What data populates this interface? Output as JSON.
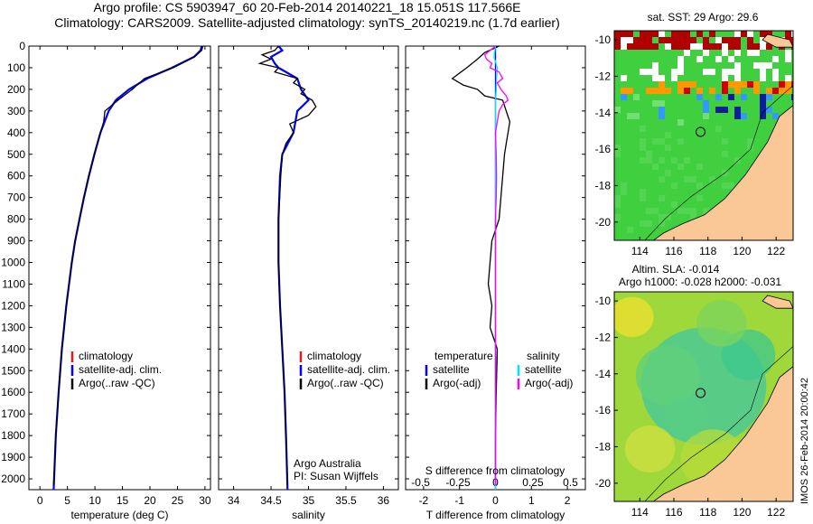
{
  "header": {
    "line1": "Argo profile: CS 5903947_60 20-Feb-2014 20140221_18 15.051S 117.566E",
    "line2": "Climatology: CARS2009. Satellite-adjusted climatology: synTS_20140219.nc (1.7d earlier)"
  },
  "annotations": {
    "credit_line1": "Argo Australia",
    "credit_line2": "PI: Susan Wijffels",
    "s_diff_label": "S difference from climatology",
    "map_top_title": "sat. SST: 29 Argo: 29.6",
    "map_bottom_title1": "Altim. SLA: -0.014",
    "map_bottom_title2": "Argo h1000: -0.028 h2000: -0.031",
    "side_stamp": "IMOS 26-Feb-2014 20:00:42"
  },
  "colors": {
    "climatology": "#e41a1c",
    "satellite": "#0000ff",
    "argo": "#000000",
    "salinity_satellite": "#00e5ff",
    "salinity_argo": "#ff00ff",
    "land": "#f9c896",
    "ocean_green": "#3fcf3f"
  },
  "chart_data": [
    {
      "type": "line",
      "name": "temperature-panel",
      "xlabel": "temperature (deg C)",
      "ylabel": "",
      "xlim": [
        -2,
        31
      ],
      "ylim": [
        2050,
        0
      ],
      "xticks": [
        0,
        5,
        10,
        15,
        20,
        25,
        30
      ],
      "yticks": [
        0,
        100,
        200,
        300,
        400,
        500,
        600,
        700,
        800,
        900,
        1000,
        1100,
        1200,
        1300,
        1400,
        1500,
        1600,
        1700,
        1800,
        1900,
        2000
      ],
      "legend": [
        "climatology",
        "satellite-adj. clim.",
        "Argo(..raw -QC)"
      ],
      "legend_placement": "lower-middle",
      "series": [
        {
          "name": "climatology",
          "depth": [
            0,
            20,
            50,
            100,
            150,
            200,
            250,
            300,
            400,
            500,
            600,
            700,
            800,
            900,
            1000,
            1200,
            1400,
            1600,
            1800,
            2050
          ],
          "values": [
            29.4,
            29.2,
            28.0,
            24.0,
            19.5,
            16.2,
            13.8,
            12.5,
            11.0,
            9.9,
            8.9,
            8.0,
            7.2,
            6.4,
            5.8,
            4.8,
            4.0,
            3.4,
            2.9,
            2.5
          ]
        },
        {
          "name": "satellite-adj. clim.",
          "depth": [
            0,
            20,
            50,
            100,
            150,
            200,
            250,
            300,
            400,
            500,
            600,
            700,
            800,
            900,
            1000,
            1200,
            1400,
            1600,
            1800,
            2050
          ],
          "values": [
            29.4,
            29.2,
            28.0,
            24.0,
            19.5,
            16.2,
            13.8,
            12.5,
            11.0,
            9.9,
            8.9,
            8.0,
            7.2,
            6.4,
            5.8,
            4.8,
            4.0,
            3.4,
            2.9,
            2.5
          ]
        },
        {
          "name": "Argo(..raw -QC)",
          "depth": [
            0,
            20,
            50,
            100,
            150,
            200,
            250,
            300,
            350,
            400,
            500,
            600,
            700,
            800,
            900,
            1000,
            1200,
            1400,
            1600,
            1800,
            2030
          ],
          "values": [
            29.6,
            29.4,
            28.1,
            24.2,
            19.0,
            16.8,
            14.2,
            11.8,
            11.6,
            11.0,
            9.9,
            8.9,
            8.0,
            7.2,
            6.4,
            5.8,
            4.8,
            4.0,
            3.4,
            2.9,
            2.5
          ]
        }
      ]
    },
    {
      "type": "line",
      "name": "salinity-panel",
      "xlabel": "salinity",
      "xlim": [
        33.8,
        36.2
      ],
      "ylim": [
        2050,
        0
      ],
      "xticks": [
        34,
        34.5,
        35,
        35.5,
        36
      ],
      "legend": [
        "climatology",
        "satellite-adj. clim.",
        "Argo(..raw -QC)"
      ],
      "legend_placement": "lower-middle",
      "series": [
        {
          "name": "climatology",
          "depth": [
            0,
            20,
            50,
            80,
            100,
            150,
            200,
            250,
            300,
            400,
            500,
            600,
            800,
            1000,
            1200,
            1400,
            1600,
            1800,
            2050
          ],
          "values": [
            34.6,
            34.65,
            34.5,
            34.55,
            34.6,
            34.85,
            34.9,
            35.0,
            34.85,
            34.8,
            34.65,
            34.62,
            34.6,
            34.6,
            34.62,
            34.65,
            34.68,
            34.7,
            34.72
          ]
        },
        {
          "name": "satellite-adj. clim.",
          "depth": [
            0,
            20,
            50,
            80,
            100,
            150,
            200,
            250,
            300,
            400,
            500,
            600,
            800,
            1000,
            1200,
            1400,
            1600,
            1800,
            2050
          ],
          "values": [
            34.6,
            34.65,
            34.5,
            34.55,
            34.6,
            34.85,
            34.9,
            35.0,
            34.85,
            34.8,
            34.65,
            34.62,
            34.6,
            34.6,
            34.62,
            34.65,
            34.68,
            34.7,
            34.72
          ]
        },
        {
          "name": "Argo(..raw -QC)",
          "depth": [
            0,
            20,
            40,
            60,
            80,
            100,
            120,
            150,
            170,
            200,
            220,
            250,
            280,
            320,
            360,
            400,
            450,
            500,
            600,
            800,
            1000,
            1200,
            1400,
            1600,
            1800,
            2030
          ],
          "values": [
            34.6,
            34.55,
            34.38,
            34.5,
            34.35,
            34.6,
            34.55,
            34.85,
            34.8,
            34.95,
            34.9,
            35.05,
            35.1,
            35.0,
            34.75,
            34.8,
            34.7,
            34.65,
            34.63,
            34.6,
            34.6,
            34.62,
            34.65,
            34.68,
            34.7,
            34.72
          ]
        }
      ]
    },
    {
      "type": "line",
      "name": "difference-panel",
      "xlabel": "T difference from climatology",
      "xlabel_top": "S difference from climatology",
      "xlim": [
        -2.5,
        2.5
      ],
      "ylim": [
        2050,
        0
      ],
      "xticks": [
        -2,
        -1,
        0,
        1,
        2
      ],
      "x2ticks": [
        -0.5,
        -0.25,
        0,
        0.25,
        0.5
      ],
      "legend": [
        "temperature",
        "satellite",
        "Argo(-adj)",
        "salinity",
        "satellite",
        "Argo(-adj)"
      ],
      "legend_placement": "lower-middle",
      "series": [
        {
          "name": "satellite",
          "depth": [
            0,
            100,
            200,
            300,
            500,
            800,
            1200,
            1600,
            2050
          ],
          "values": [
            0,
            0,
            0,
            0,
            0,
            0,
            0,
            0,
            0
          ]
        },
        {
          "name": "Argo(-adj)",
          "depth": [
            0,
            30,
            60,
            100,
            150,
            180,
            200,
            230,
            250,
            300,
            350,
            400,
            450,
            500,
            600,
            700,
            800,
            900,
            1000,
            1100,
            1200,
            1300,
            1400,
            1600,
            1800,
            2030
          ],
          "values": [
            0.1,
            -0.3,
            -0.5,
            -0.8,
            -1.2,
            -0.9,
            -0.5,
            -0.3,
            0.2,
            0.3,
            0.4,
            0.35,
            0.3,
            0.25,
            0.2,
            0.15,
            0.1,
            -0.1,
            -0.15,
            -0.2,
            -0.1,
            -0.15,
            0.05,
            0.02,
            0.0,
            0.0
          ]
        },
        {
          "name": "satellite",
          "depth": [
            0,
            50,
            100,
            150,
            200,
            250,
            300,
            500,
            800,
            1200,
            2050
          ],
          "values": [
            0,
            -0.04,
            0.05,
            0.03,
            0.02,
            0.0,
            0.0,
            0.0,
            0.0,
            0.0,
            0.0
          ]
        },
        {
          "name": "Argo(-adj)",
          "depth": [
            0,
            40,
            60,
            80,
            100,
            120,
            150,
            170,
            200,
            230,
            250,
            270,
            300,
            350,
            400,
            500,
            600,
            700,
            800,
            1000,
            1200,
            1600,
            2030
          ],
          "values": [
            0.0,
            -0.3,
            -0.25,
            -0.1,
            -0.15,
            0.1,
            0.2,
            0.05,
            0.15,
            0.3,
            0.35,
            0.2,
            0.1,
            0.05,
            0.0,
            0.02,
            0.03,
            0.02,
            0.0,
            0.0,
            0.0,
            0.0,
            0.0
          ]
        }
      ]
    },
    {
      "type": "heatmap",
      "name": "sst-map",
      "title": "sat. SST: 29 Argo: 29.6",
      "xticks": [
        114,
        116,
        118,
        120,
        122
      ],
      "yticks": [
        -10,
        -12,
        -14,
        -16,
        -18,
        -20
      ],
      "xlim": [
        112.5,
        123
      ],
      "ylim": [
        -21,
        -9.5
      ],
      "argo_position": [
        117.566,
        -15.051
      ]
    },
    {
      "type": "heatmap",
      "name": "sla-map",
      "title": "Altim. SLA: -0.014",
      "subtitle": "Argo h1000: -0.028 h2000: -0.031",
      "xticks": [
        114,
        116,
        118,
        120,
        122
      ],
      "yticks": [
        -10,
        -12,
        -14,
        -16,
        -18,
        -20
      ],
      "xlim": [
        112.5,
        123
      ],
      "ylim": [
        -21,
        -9.5
      ],
      "argo_position": [
        117.566,
        -15.051
      ]
    }
  ]
}
